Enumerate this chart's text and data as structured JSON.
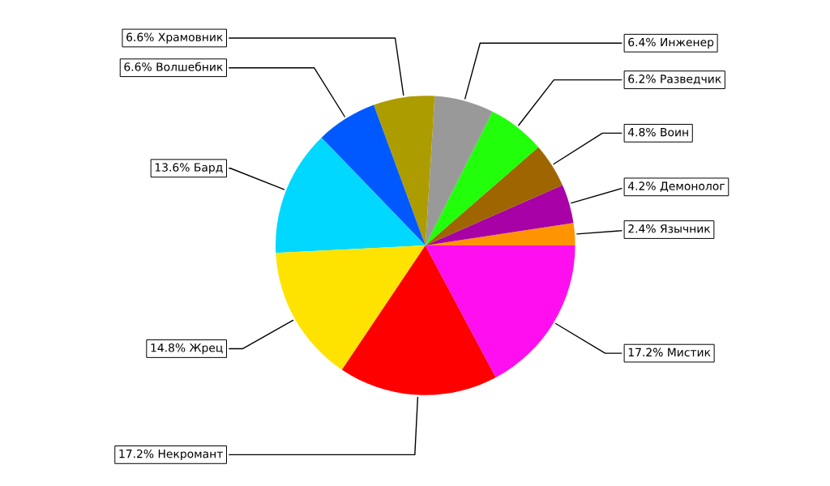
{
  "chart_data": {
    "type": "pie",
    "categories": [
      "Язычник",
      "Демонолог",
      "Воин",
      "Разведчик",
      "Инженер",
      "Храмовник",
      "Волшебник",
      "Бард",
      "Жрец",
      "Некромант",
      "Мистик"
    ],
    "values": [
      2.4,
      4.2,
      4.8,
      6.2,
      6.4,
      6.6,
      6.6,
      13.6,
      14.8,
      17.2,
      17.2
    ],
    "value_labels": [
      "2.4%",
      "4.2%",
      "4.8%",
      "6.2%",
      "6.4%",
      "6.6%",
      "6.6%",
      "13.6%",
      "14.8%",
      "17.2%",
      "17.2%"
    ],
    "colors": [
      "#ff9300",
      "#a600a6",
      "#9e6500",
      "#22ff0a",
      "#999999",
      "#ad9c00",
      "#0059ff",
      "#00d8ff",
      "#ffe300",
      "#ff0000",
      "#ff0ff0"
    ]
  }
}
